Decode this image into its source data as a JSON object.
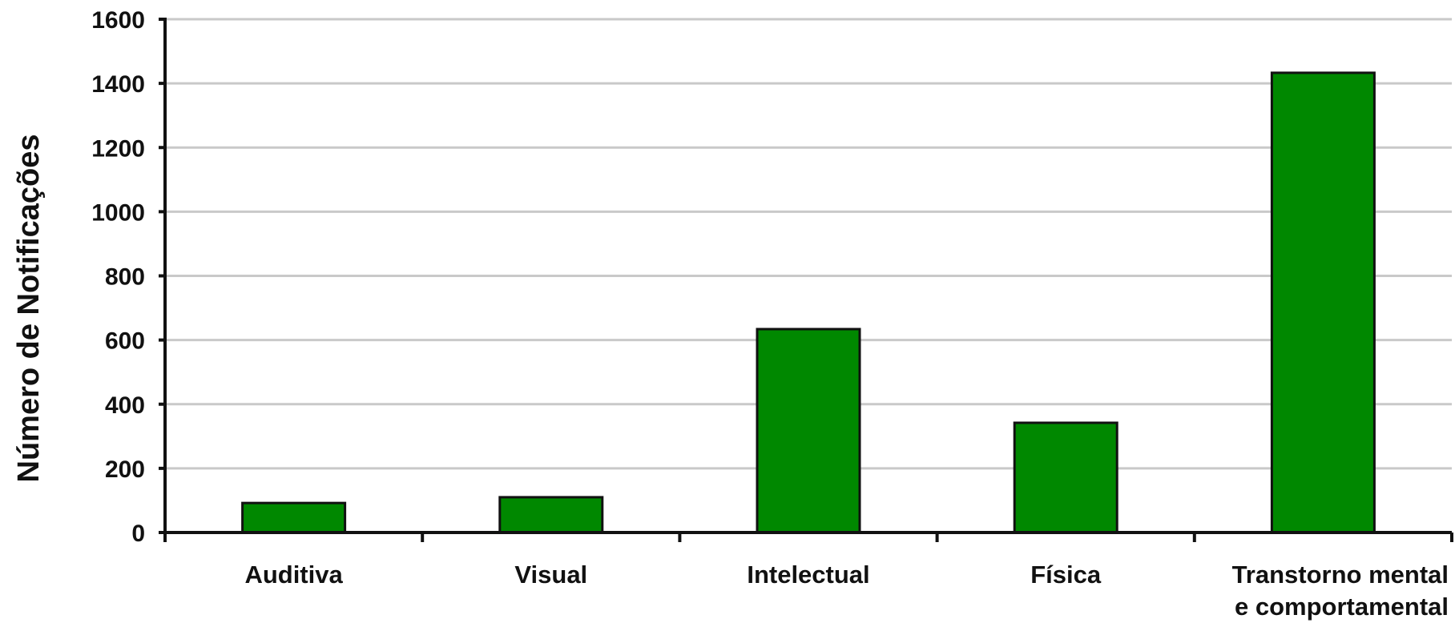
{
  "chart_data": {
    "type": "bar",
    "title": "",
    "xlabel": "",
    "ylabel": "Número de Notificações",
    "ylim": [
      0,
      1600
    ],
    "yticks": [
      0,
      200,
      400,
      600,
      800,
      1000,
      1200,
      1400,
      1600
    ],
    "grid": true,
    "bar_color": "#008800",
    "categories": [
      [
        "Auditiva"
      ],
      [
        "Visual"
      ],
      [
        "Intelectual"
      ],
      [
        "Física"
      ],
      [
        "Transtorno mental",
        "e comportamental"
      ]
    ],
    "values": [
      92,
      110,
      634,
      342,
      1433
    ]
  }
}
